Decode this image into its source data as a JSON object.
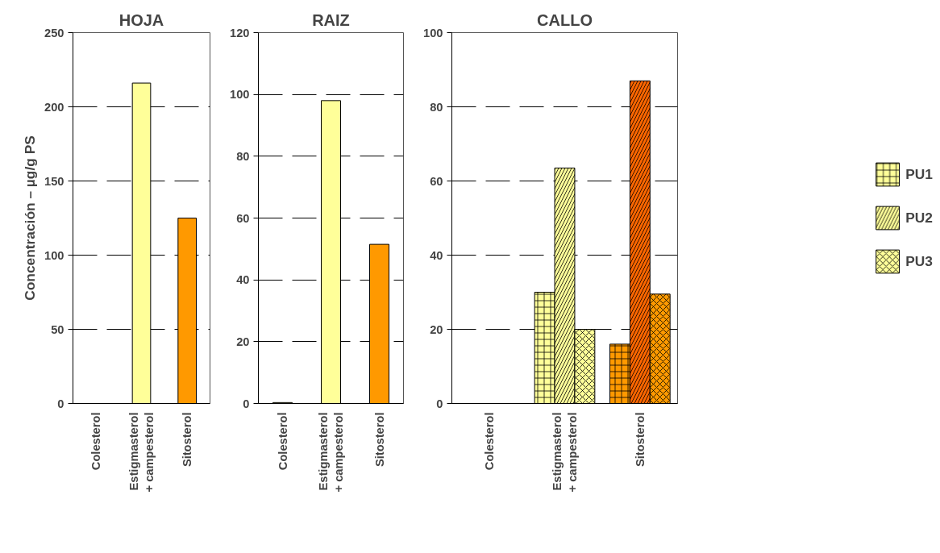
{
  "chart_data": [
    {
      "type": "bar",
      "title": "HOJA",
      "ylabel": "Concentración – µg/g PS",
      "categories": [
        "Colesterol",
        "Estigmasterol\n+ campesterol",
        "Sitosterol"
      ],
      "values": [
        0,
        216,
        125
      ],
      "colors": [
        "#ffff99",
        "#ffff99",
        "#ff9900"
      ],
      "ylim": [
        0,
        250
      ],
      "yticks": [
        0,
        50,
        100,
        150,
        200,
        250
      ],
      "grid": "y"
    },
    {
      "type": "bar",
      "title": "RAIZ",
      "categories": [
        "Colesterol",
        "Estigmasterol\n+ campesterol",
        "Sitosterol"
      ],
      "values": [
        0.3,
        98,
        51.5
      ],
      "colors": [
        "#ffff99",
        "#ffff99",
        "#ff9900"
      ],
      "ylim": [
        0,
        120
      ],
      "yticks": [
        0,
        20,
        40,
        60,
        80,
        100,
        120
      ],
      "grid": "y"
    },
    {
      "type": "bar",
      "title": "CALLO",
      "categories": [
        "Colesterol",
        "Estigmasterol\n+ campesterol",
        "Sitosterol"
      ],
      "series": [
        {
          "name": "PU1",
          "colors": [
            "#ffff99",
            "#ffff99",
            "#ff9900"
          ],
          "values": [
            0,
            30,
            16
          ]
        },
        {
          "name": "PU2",
          "colors": [
            "#ffff99",
            "#ffff99",
            "#ff6600"
          ],
          "values": [
            0,
            63.5,
            87
          ]
        },
        {
          "name": "PU3",
          "colors": [
            "#ffff99",
            "#ffff99",
            "#ff9900"
          ],
          "values": [
            0,
            20,
            29.5
          ]
        }
      ],
      "ylim": [
        0,
        100
      ],
      "yticks": [
        0,
        20,
        40,
        60,
        80,
        100
      ],
      "grid": "y",
      "legend": "right"
    }
  ]
}
